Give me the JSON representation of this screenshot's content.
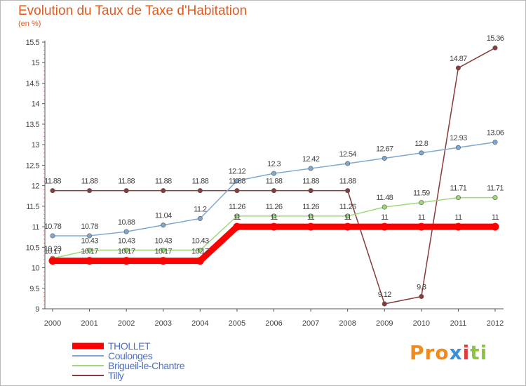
{
  "title": "Evolution du Taux de Taxe d'Habitation",
  "subtitle": "(en %)",
  "logo": {
    "p1": "Pro",
    "p2": "x",
    "p3": "i",
    "p4": "ti"
  },
  "chart_data": {
    "type": "line",
    "x": [
      "2000",
      "2001",
      "2002",
      "2003",
      "2004",
      "2005",
      "2006",
      "2007",
      "2008",
      "2009",
      "2010",
      "2011",
      "2012"
    ],
    "ylim": [
      9,
      15.5
    ],
    "yticks": [
      "9",
      "9.5",
      "10",
      "10.5",
      "11",
      "11.5",
      "12",
      "12.5",
      "13",
      "13.5",
      "14",
      "14.5",
      "15",
      "15.5"
    ],
    "grid": false,
    "legend_position": "bottom-left",
    "series": [
      {
        "name": "THOLLET",
        "color": "#ff0000",
        "values": [
          10.17,
          10.17,
          10.17,
          10.17,
          10.17,
          11,
          11,
          11,
          11,
          11,
          11,
          11,
          11
        ],
        "labels": [
          "10.17",
          "10.17",
          "10.17",
          "10.17",
          "10.17",
          "11",
          "11",
          "11",
          "11",
          "11",
          "11",
          "11",
          "11"
        ]
      },
      {
        "name": "Coulonges",
        "color": "#7fa8d0",
        "values": [
          10.78,
          10.78,
          10.88,
          11.04,
          11.2,
          12.12,
          12.3,
          12.42,
          12.54,
          12.67,
          12.8,
          12.93,
          13.06
        ],
        "labels": [
          "10.78",
          "10.78",
          "10.88",
          "11.04",
          "11.2",
          "12.12",
          "12.3",
          "12.42",
          "12.54",
          "12.67",
          "12.8",
          "12.93",
          "13.06"
        ]
      },
      {
        "name": "Brigueil-le-Chantre",
        "color": "#9fd87a",
        "values": [
          10.23,
          10.43,
          10.43,
          10.43,
          10.43,
          11.26,
          11.26,
          11.26,
          11.26,
          11.48,
          11.59,
          11.71,
          11.71
        ],
        "labels": [
          "10.23",
          "10.43",
          "10.43",
          "10.43",
          "10.43",
          "11.26",
          "11.26",
          "11.26",
          "11.26",
          "11.48",
          "11.59",
          "11.71",
          "11.71"
        ]
      },
      {
        "name": "Tilly",
        "color": "#8b3a3a",
        "values": [
          11.88,
          11.88,
          11.88,
          11.88,
          11.88,
          11.88,
          11.88,
          11.88,
          11.88,
          9.12,
          9.3,
          14.87,
          15.36
        ],
        "labels": [
          "11.88",
          "11.88",
          "11.88",
          "11.88",
          "11.88",
          "11.88",
          "11.88",
          "11.88",
          "11.88",
          "9.12",
          "9.3",
          "14.87",
          "15.36"
        ]
      }
    ]
  }
}
